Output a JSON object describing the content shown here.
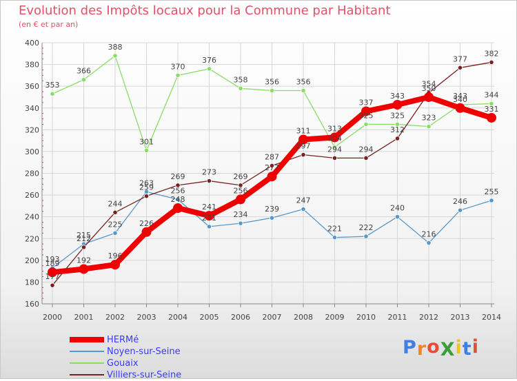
{
  "header": {
    "title": "Evolution des Impôts locaux pour la Commune par Habitant",
    "subtitle": "(en € et par an)"
  },
  "colors": {
    "title": "#e2506a",
    "legend_text": "#3a3aff",
    "grid": "#d6d6d6",
    "axis": "#888888"
  },
  "chart_data": {
    "type": "line",
    "title": "Evolution des Impôts locaux pour la Commune par Habitant",
    "subtitle": "(en € et par an)",
    "xlabel": "",
    "ylabel": "",
    "ylim": [
      160,
      400
    ],
    "y_ticks": [
      160,
      180,
      200,
      220,
      240,
      260,
      280,
      300,
      320,
      340,
      360,
      380,
      400
    ],
    "grid": true,
    "legend_position": "bottom-left",
    "categories": [
      "2000",
      "2001",
      "2002",
      "2003",
      "2004",
      "2005",
      "2006",
      "2007",
      "2008",
      "2009",
      "2010",
      "2011",
      "2012",
      "2013",
      "2014"
    ],
    "series": [
      {
        "name": "HERMé",
        "color": "#ee0000",
        "emphasis": true,
        "values": [
          189,
          192,
          196,
          226,
          248,
          241,
          256,
          277,
          311,
          313,
          337,
          343,
          350,
          340,
          331
        ],
        "labels": [
          "189",
          "192",
          "196",
          "226",
          "248",
          "241",
          "256",
          "277",
          "311",
          "313",
          "337",
          "343",
          "350",
          "340",
          "331"
        ]
      },
      {
        "name": "Noyen-sur-Seine",
        "color": "#5599cc",
        "values": [
          193,
          215,
          225,
          263,
          256,
          231,
          234,
          239,
          247,
          221,
          222,
          240,
          216,
          246,
          255
        ],
        "labels": [
          "193",
          "215",
          "225",
          "263",
          "256",
          "231",
          "234",
          "239",
          "247",
          "221",
          "222",
          "240",
          "216",
          "246",
          "255"
        ]
      },
      {
        "name": "Gouaix",
        "color": "#88dd66",
        "values": [
          353,
          366,
          388,
          301,
          370,
          376,
          358,
          356,
          356,
          304,
          325,
          325,
          323,
          343,
          344
        ],
        "labels": [
          "353",
          "366",
          "388",
          "301",
          "370",
          "376",
          "358",
          "356",
          "356",
          "304",
          "325",
          "325",
          "323",
          "343",
          "344"
        ]
      },
      {
        "name": "Villiers-sur-Seine",
        "color": "#772222",
        "values": [
          177,
          212,
          244,
          259,
          269,
          273,
          269,
          287,
          297,
          294,
          294,
          312,
          354,
          377,
          382
        ],
        "labels": [
          "177",
          "212",
          "244",
          "259",
          "269",
          "273",
          "269",
          "287",
          "297",
          "294",
          "294",
          "312",
          "354",
          "377",
          "382"
        ]
      }
    ]
  },
  "logo": {
    "text": "ProXiti",
    "letters": [
      {
        "char": "P",
        "color": "#3f7fe6"
      },
      {
        "char": "r",
        "color": "#f08a1e"
      },
      {
        "char": "o",
        "color": "#e2503a"
      },
      {
        "char": "X",
        "color": "#3a9f3a"
      },
      {
        "char": "i",
        "color": "#f0c21e"
      },
      {
        "char": "t",
        "color": "#3f7fe6"
      },
      {
        "char": "i",
        "color": "#e2503a"
      }
    ]
  }
}
